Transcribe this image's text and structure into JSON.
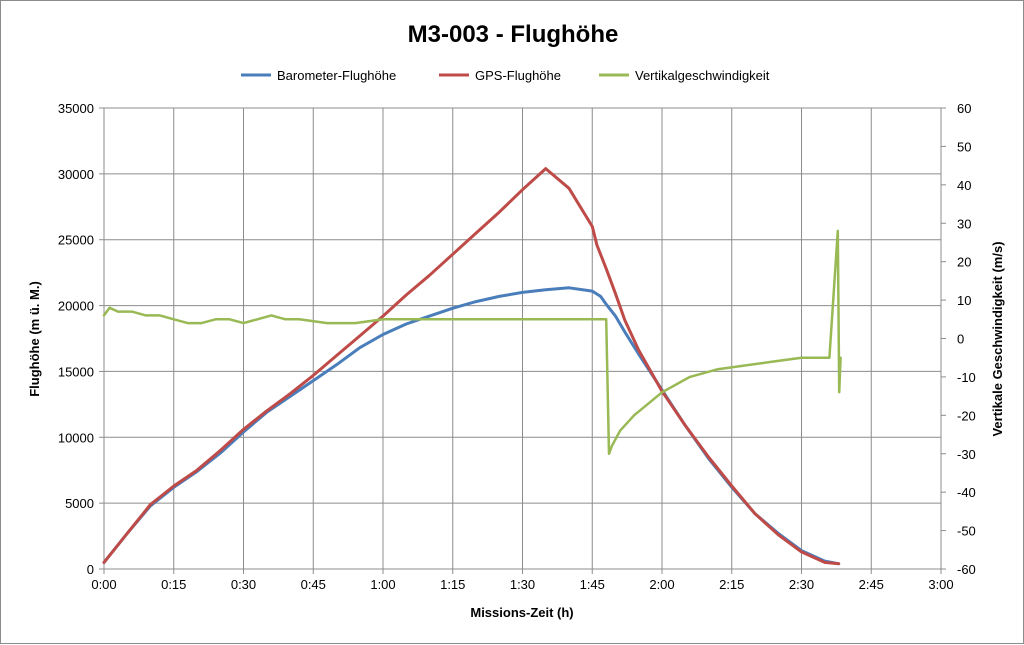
{
  "chart_data": {
    "type": "line",
    "title": "M3-003 - Flughöhe",
    "xlabel": "Missions-Zeit (h)",
    "ylabel": "Flughöhe (m ü. M.)",
    "y2label": "Vertikale Geschwindigkeit (m/s)",
    "x_unit": "hours",
    "xlim": [
      0,
      3
    ],
    "ylim": [
      0,
      35000
    ],
    "y2lim": [
      -60,
      60
    ],
    "x_tick_labels": [
      "0:00",
      "0:15",
      "0:30",
      "0:45",
      "1:00",
      "1:15",
      "1:30",
      "1:45",
      "2:00",
      "2:15",
      "2:30",
      "2:45",
      "3:00"
    ],
    "y_tick_labels": [
      "0",
      "5000",
      "10000",
      "15000",
      "20000",
      "25000",
      "30000",
      "35000"
    ],
    "y2_tick_labels": [
      "-60",
      "-50",
      "-40",
      "-30",
      "-20",
      "-10",
      "0",
      "10",
      "20",
      "30",
      "40",
      "50",
      "60"
    ],
    "grid": true,
    "legend_position": "top",
    "series": [
      {
        "name": "Barometer-Flughöhe",
        "axis": "left",
        "color": "#4a7ebb",
        "x": [
          0.0,
          0.0833,
          0.1667,
          0.25,
          0.3333,
          0.4167,
          0.5,
          0.5833,
          0.6667,
          0.75,
          0.8333,
          0.9167,
          1.0,
          1.0833,
          1.1667,
          1.25,
          1.3333,
          1.4167,
          1.5,
          1.5833,
          1.6667,
          1.75,
          1.78,
          1.8,
          1.8333,
          1.8667,
          1.9167,
          2.0,
          2.0833,
          2.1667,
          2.25,
          2.3333,
          2.4167,
          2.5,
          2.5833,
          2.6333
        ],
        "y": [
          500,
          2700,
          4800,
          6200,
          7400,
          8800,
          10400,
          11900,
          13100,
          14300,
          15500,
          16800,
          17800,
          18600,
          19200,
          19800,
          20300,
          20700,
          21000,
          21200,
          21350,
          21100,
          20700,
          20100,
          19200,
          18000,
          16300,
          13600,
          10900,
          8400,
          6200,
          4200,
          2700,
          1400,
          600,
          400
        ]
      },
      {
        "name": "GPS-Flughöhe",
        "axis": "left",
        "color": "#be4b48",
        "x": [
          0.0,
          0.0833,
          0.1667,
          0.25,
          0.3333,
          0.4167,
          0.5,
          0.5833,
          0.6667,
          0.75,
          0.8333,
          0.9167,
          1.0,
          1.0833,
          1.1667,
          1.25,
          1.3333,
          1.4167,
          1.5,
          1.5833,
          1.6667,
          1.75,
          1.7667,
          1.8,
          1.8333,
          1.8667,
          1.9167,
          2.0,
          2.0833,
          2.1667,
          2.25,
          2.3333,
          2.4167,
          2.5,
          2.5833,
          2.6333
        ],
        "y": [
          500,
          2700,
          4900,
          6300,
          7500,
          9000,
          10600,
          12000,
          13300,
          14700,
          16200,
          17700,
          19200,
          20800,
          22300,
          23900,
          25500,
          27100,
          28800,
          30400,
          28900,
          26000,
          24600,
          22800,
          20900,
          18900,
          16600,
          13500,
          10900,
          8500,
          6300,
          4200,
          2600,
          1300,
          500,
          400
        ]
      },
      {
        "name": "Vertikalgeschwindigkeit",
        "axis": "right",
        "color": "#98b954",
        "x": [
          0.0,
          0.02,
          0.05,
          0.1,
          0.15,
          0.2,
          0.25,
          0.3,
          0.35,
          0.4,
          0.45,
          0.5,
          0.55,
          0.6,
          0.65,
          0.7,
          0.8,
          0.9,
          1.0,
          1.1,
          1.2,
          1.3,
          1.4,
          1.5,
          1.6,
          1.7,
          1.8,
          1.81,
          1.82,
          1.85,
          1.9,
          1.95,
          2.0,
          2.05,
          2.1,
          2.2,
          2.3,
          2.4,
          2.5,
          2.55,
          2.6,
          2.63,
          2.635,
          2.64
        ],
        "y": [
          6,
          8,
          7,
          7,
          6,
          6,
          5,
          4,
          4,
          5,
          5,
          4,
          5,
          6,
          5,
          5,
          4,
          4,
          5,
          5,
          5,
          5,
          5,
          5,
          5,
          5,
          5,
          -30,
          -28,
          -24,
          -20,
          -17,
          -14,
          -12,
          -10,
          -8,
          -7,
          -6,
          -5,
          -5,
          -5,
          28,
          -14,
          -5
        ]
      }
    ]
  }
}
